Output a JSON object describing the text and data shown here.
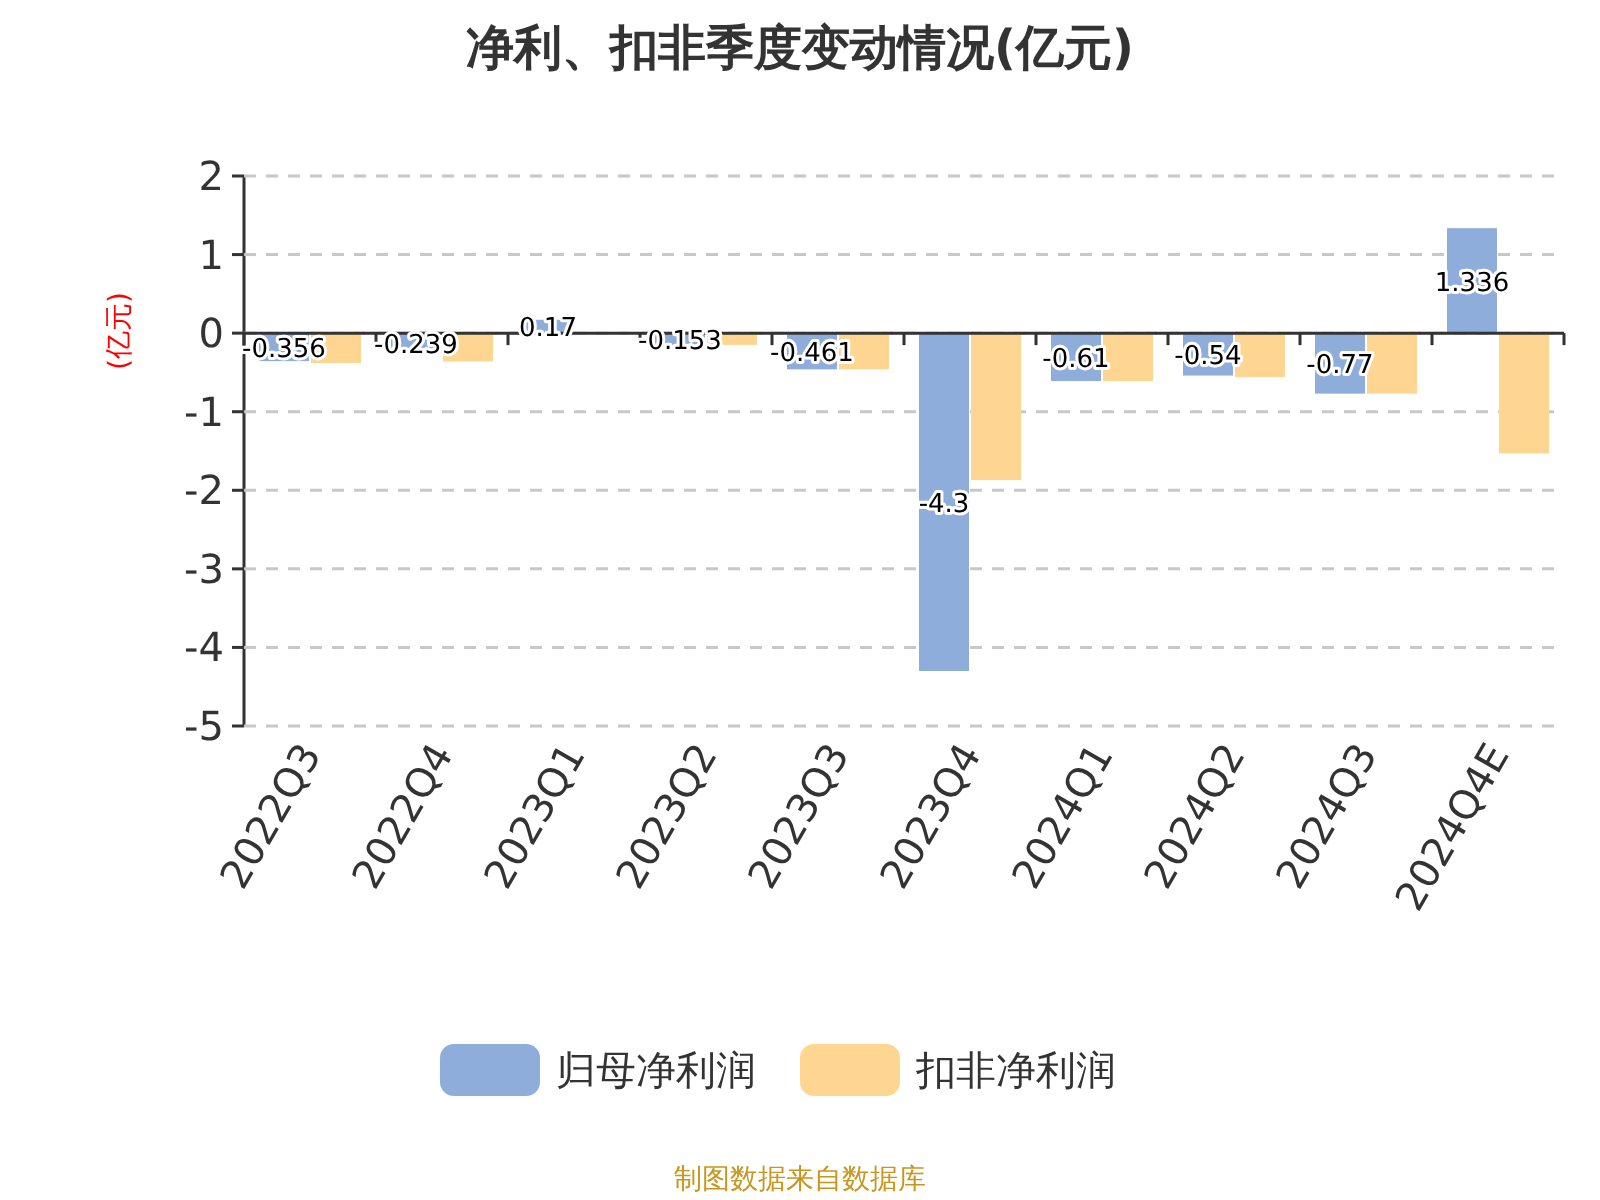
{
  "chart_data": {
    "type": "bar",
    "title": "净利、扣非季度变动情况(亿元)",
    "ylabel": "(亿元)",
    "categories": [
      "2022Q3",
      "2022Q4",
      "2023Q1",
      "2023Q2",
      "2023Q3",
      "2023Q4",
      "2024Q1",
      "2024Q2",
      "2024Q3",
      "2024Q4E"
    ],
    "series": [
      {
        "name": "归母净利润",
        "color": "#8eaddb",
        "values": [
          -0.356,
          -0.239,
          0.17,
          -0.153,
          -0.461,
          -4.3,
          -0.61,
          -0.54,
          -0.77,
          1.336
        ],
        "value_labels": [
          "-0.356",
          "-0.239",
          "0.17",
          "-0.153",
          "-0.461",
          "-4.3",
          "-0.61",
          "-0.54",
          "-0.77",
          "1.336"
        ]
      },
      {
        "name": "扣非净利润",
        "color": "#ffd592",
        "values": [
          -0.38,
          -0.36,
          null,
          -0.15,
          -0.46,
          -1.87,
          -0.61,
          -0.56,
          -0.77,
          -1.53
        ]
      }
    ],
    "ylim": [
      -5,
      2
    ],
    "yticks": [
      -5,
      -4,
      -3,
      -2,
      -1,
      0,
      1,
      2
    ],
    "grid": "y",
    "legend": "bottom",
    "annotations": [
      "制图数据来自数据库"
    ]
  }
}
